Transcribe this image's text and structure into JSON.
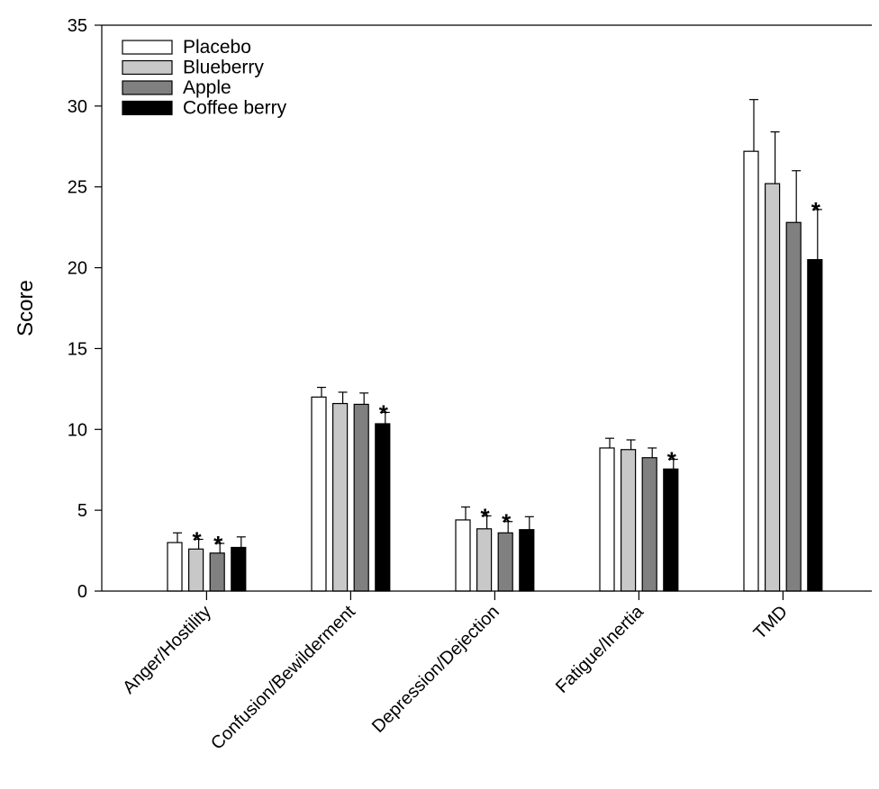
{
  "chart_data": {
    "type": "bar",
    "title": "",
    "xlabel": "",
    "ylabel": "Score",
    "ylim": [
      0,
      35
    ],
    "yticks": [
      0,
      5,
      10,
      15,
      20,
      25,
      30,
      35
    ],
    "grid": false,
    "legend_position": "top-left",
    "categories": [
      "Anger/Hostility",
      "Confusion/Bewilderment",
      "Depression/Dejection",
      "Fatigue/Inertia",
      "TMD"
    ],
    "series": [
      {
        "name": "Placebo",
        "color": "#ffffff",
        "values": [
          3.0,
          12.0,
          4.4,
          8.85,
          27.2
        ],
        "errors": [
          0.6,
          0.6,
          0.8,
          0.6,
          3.2
        ],
        "significant": [
          false,
          false,
          false,
          false,
          false
        ]
      },
      {
        "name": "Blueberry",
        "color": "#c8c8c8",
        "values": [
          2.6,
          11.6,
          3.85,
          8.75,
          25.2
        ],
        "errors": [
          0.6,
          0.7,
          0.8,
          0.6,
          3.2
        ],
        "significant": [
          true,
          false,
          true,
          false,
          false
        ]
      },
      {
        "name": "Apple",
        "color": "#808080",
        "values": [
          2.35,
          11.55,
          3.6,
          8.25,
          22.8
        ],
        "errors": [
          0.6,
          0.7,
          0.7,
          0.6,
          3.2
        ],
        "significant": [
          true,
          false,
          true,
          false,
          false
        ]
      },
      {
        "name": "Coffee berry",
        "color": "#000000",
        "values": [
          2.7,
          10.35,
          3.8,
          7.55,
          20.5
        ],
        "errors": [
          0.65,
          0.7,
          0.8,
          0.6,
          3.1
        ],
        "significant": [
          false,
          true,
          false,
          true,
          true
        ]
      }
    ],
    "significance_marker": "*"
  }
}
